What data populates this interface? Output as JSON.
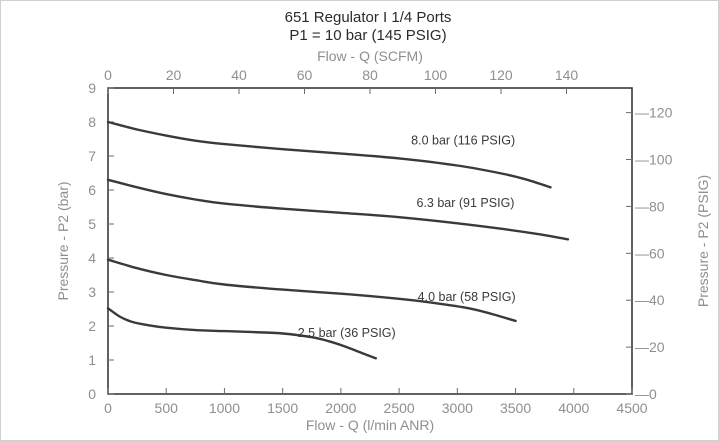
{
  "chart_data": {
    "type": "line",
    "title": "651 Regulator I 1/4 Ports",
    "subtitle": "P1 = 10 bar (145 PSIG)",
    "xlabel": "Flow - Q (l/min ANR)",
    "x2label": "Flow - Q (SCFM)",
    "ylabel": "Pressure - P2 (bar)",
    "y2label": "Pressure - P2 (PSIG)",
    "xlim": [
      0,
      4500
    ],
    "ylim": [
      0,
      9
    ],
    "x2lim": [
      0,
      160
    ],
    "y2lim": [
      0,
      130.5
    ],
    "x_ticks": [
      "0",
      "500",
      "1000",
      "1500",
      "2000",
      "2500",
      "3000",
      "3500",
      "4000",
      "4500"
    ],
    "x2_ticks": [
      "0",
      "20",
      "40",
      "60",
      "80",
      "100",
      "120",
      "140"
    ],
    "y_ticks": [
      "0",
      "1",
      "2",
      "3",
      "4",
      "5",
      "6",
      "7",
      "8",
      "9"
    ],
    "y2_ticks": [
      "0",
      "20",
      "40",
      "60",
      "80",
      "100",
      "120"
    ],
    "grid": false,
    "series": [
      {
        "name": "8.0 bar (116 PSIG)",
        "x": [
          0,
          250,
          500,
          750,
          1000,
          1500,
          2000,
          2500,
          3000,
          3400,
          3600,
          3800
        ],
        "y": [
          8.0,
          7.78,
          7.6,
          7.45,
          7.35,
          7.2,
          7.07,
          6.93,
          6.72,
          6.47,
          6.3,
          6.08
        ]
      },
      {
        "name": "6.3 bar (91 PSIG)",
        "x": [
          0,
          250,
          500,
          750,
          1000,
          1500,
          2000,
          2500,
          3000,
          3400,
          3700,
          3950
        ],
        "y": [
          6.3,
          6.08,
          5.88,
          5.72,
          5.6,
          5.45,
          5.33,
          5.2,
          5.02,
          4.85,
          4.7,
          4.55
        ]
      },
      {
        "name": "4.0 bar (58 PSIG)",
        "x": [
          0,
          250,
          500,
          750,
          1000,
          1500,
          2000,
          2500,
          2800,
          3100,
          3300,
          3500
        ],
        "y": [
          3.95,
          3.7,
          3.5,
          3.35,
          3.22,
          3.07,
          2.95,
          2.8,
          2.68,
          2.52,
          2.35,
          2.15
        ]
      },
      {
        "name": "2.5 bar (36 PSIG)",
        "x": [
          0,
          100,
          200,
          350,
          500,
          750,
          1000,
          1250,
          1500,
          1750,
          1900,
          2050,
          2200,
          2300
        ],
        "y": [
          2.52,
          2.28,
          2.13,
          2.02,
          1.95,
          1.88,
          1.85,
          1.82,
          1.78,
          1.67,
          1.55,
          1.38,
          1.18,
          1.05
        ]
      }
    ]
  }
}
